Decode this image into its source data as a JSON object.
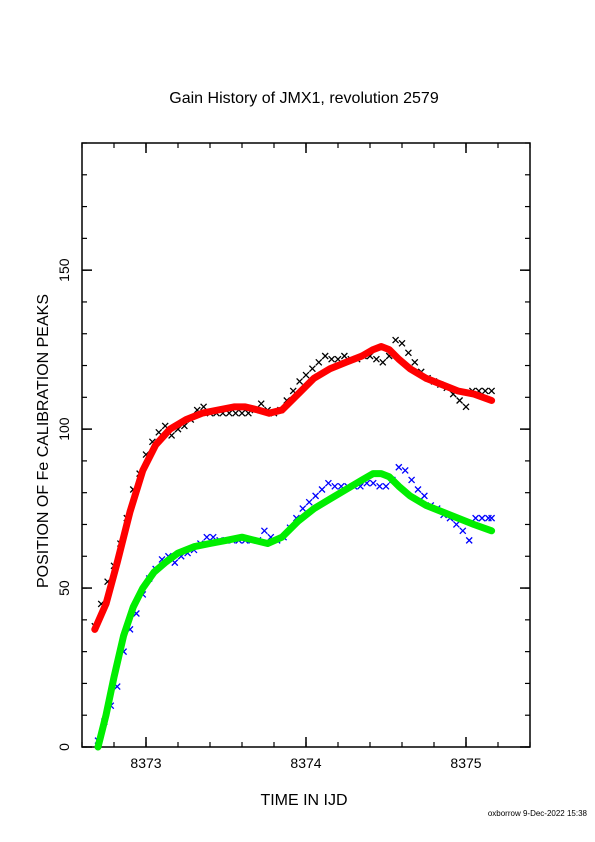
{
  "chart_data": {
    "type": "scatter",
    "title": "Gain History of JMX1, revolution 2579",
    "xlabel": "TIME IN IJD",
    "ylabel": "POSITION OF Fe CALIBRATION PEAKS",
    "xlim": [
      8372.6,
      8375.4
    ],
    "ylim": [
      0,
      190
    ],
    "xticks": [
      8373,
      8374,
      8375
    ],
    "yticks": [
      0,
      50,
      100,
      150
    ],
    "xminor_step": 0.2,
    "yminor_step": 10,
    "footer": "oxborrow  9-Dec-2022 15:38",
    "colors": {
      "upper_points": "#000000",
      "upper_fit": "#ff0000",
      "lower_points": "#0000ff",
      "lower_fit": "#00ee00"
    },
    "series": [
      {
        "kind": "points",
        "color": "upper_points",
        "x": [
          8372.68,
          8372.72,
          8372.76,
          8372.8,
          8372.84,
          8372.88,
          8372.92,
          8372.96,
          8373.0,
          8373.04,
          8373.08,
          8373.12,
          8373.16,
          8373.2,
          8373.24,
          8373.28,
          8373.32,
          8373.36,
          8373.4,
          8373.44,
          8373.48,
          8373.52,
          8373.56,
          8373.6,
          8373.64,
          8373.68,
          8373.72,
          8373.76,
          8373.8,
          8373.84,
          8373.88,
          8373.92,
          8373.96,
          8374.0,
          8374.04,
          8374.08,
          8374.12,
          8374.16,
          8374.2,
          8374.24,
          8374.28,
          8374.32,
          8374.36,
          8374.4,
          8374.44,
          8374.48,
          8374.52,
          8374.56,
          8374.6,
          8374.64,
          8374.68,
          8374.72,
          8374.76,
          8374.8,
          8374.84,
          8374.88,
          8374.92,
          8374.96,
          8375.0,
          8375.04,
          8375.08,
          8375.12,
          8375.16
        ],
        "y": [
          38,
          45,
          52,
          57,
          64,
          72,
          81,
          86,
          92,
          96,
          99,
          101,
          98,
          100,
          101,
          103,
          106,
          107,
          105,
          105,
          105,
          105,
          105,
          105,
          105,
          106,
          108,
          106,
          105,
          106,
          109,
          112,
          115,
          117,
          119,
          121,
          123,
          122,
          122,
          123,
          122,
          122,
          123,
          123,
          122,
          121,
          123,
          128,
          127,
          124,
          121,
          118,
          116,
          115,
          114,
          113,
          111,
          109,
          107,
          112,
          112,
          112,
          112
        ]
      },
      {
        "kind": "fit",
        "color": "upper_fit",
        "x": [
          8372.68,
          8372.75,
          8372.82,
          8372.9,
          8372.98,
          8373.06,
          8373.15,
          8373.25,
          8373.35,
          8373.45,
          8373.55,
          8373.62,
          8373.7,
          8373.77,
          8373.85,
          8373.95,
          8374.05,
          8374.15,
          8374.25,
          8374.35,
          8374.42,
          8374.47,
          8374.52,
          8374.58,
          8374.65,
          8374.75,
          8374.85,
          8374.95,
          8375.05,
          8375.16
        ],
        "y": [
          37,
          45,
          58,
          74,
          87,
          95,
          100,
          103,
          105,
          106,
          107,
          107,
          106,
          105,
          106,
          111,
          116,
          119,
          121,
          123,
          125,
          126,
          125,
          122,
          119,
          116,
          114,
          112,
          111,
          109
        ]
      },
      {
        "kind": "points",
        "color": "lower_points",
        "x": [
          8372.7,
          8372.74,
          8372.78,
          8372.82,
          8372.86,
          8372.9,
          8372.94,
          8372.98,
          8373.02,
          8373.06,
          8373.1,
          8373.14,
          8373.18,
          8373.22,
          8373.26,
          8373.3,
          8373.34,
          8373.38,
          8373.42,
          8373.46,
          8373.5,
          8373.54,
          8373.58,
          8373.62,
          8373.66,
          8373.7,
          8373.74,
          8373.78,
          8373.82,
          8373.86,
          8373.9,
          8373.94,
          8373.98,
          8374.02,
          8374.06,
          8374.1,
          8374.14,
          8374.18,
          8374.22,
          8374.26,
          8374.3,
          8374.34,
          8374.38,
          8374.42,
          8374.46,
          8374.5,
          8374.54,
          8374.58,
          8374.62,
          8374.66,
          8374.7,
          8374.74,
          8374.78,
          8374.82,
          8374.86,
          8374.9,
          8374.94,
          8374.98,
          8375.02,
          8375.06,
          8375.1,
          8375.14,
          8375.16
        ],
        "y": [
          2,
          8,
          13,
          19,
          30,
          37,
          42,
          48,
          53,
          56,
          59,
          60,
          58,
          60,
          61,
          62,
          64,
          66,
          66,
          65,
          65,
          65,
          65,
          65,
          65,
          65,
          68,
          66,
          65,
          66,
          69,
          72,
          75,
          77,
          79,
          81,
          83,
          82,
          82,
          82,
          82,
          82,
          83,
          83,
          82,
          82,
          84,
          88,
          87,
          84,
          81,
          79,
          76,
          75,
          73,
          72,
          70,
          68,
          65,
          72,
          72,
          72,
          72
        ]
      },
      {
        "kind": "fit",
        "color": "lower_fit",
        "x": [
          8372.7,
          8372.75,
          8372.8,
          8372.86,
          8372.92,
          8372.98,
          8373.05,
          8373.12,
          8373.2,
          8373.3,
          8373.4,
          8373.5,
          8373.6,
          8373.68,
          8373.76,
          8373.85,
          8373.95,
          8374.05,
          8374.15,
          8374.25,
          8374.35,
          8374.42,
          8374.47,
          8374.52,
          8374.58,
          8374.65,
          8374.75,
          8374.85,
          8374.95,
          8375.05,
          8375.16
        ],
        "y": [
          0,
          10,
          22,
          35,
          44,
          50,
          55,
          58,
          61,
          63,
          64,
          65,
          66,
          65,
          64,
          66,
          71,
          75,
          78,
          81,
          84,
          86,
          86,
          85,
          82,
          79,
          76,
          74,
          72,
          70,
          68
        ]
      }
    ]
  }
}
